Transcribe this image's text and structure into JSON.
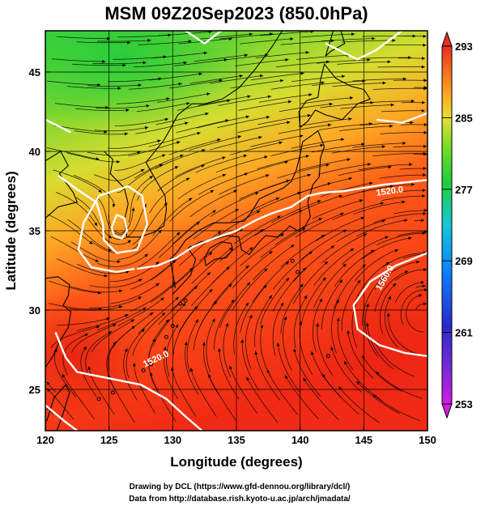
{
  "figure": {
    "title": "MSM 09Z20Sep2023 (850.0hPa)",
    "xlabel": "Longitude (degrees)",
    "ylabel": "Latitude  (degrees)",
    "credit_line1": "Drawing by DCL (https://www.gfd-dennou.org/library/dcl/)",
    "credit_line2": "Data from http://database.rish.kyoto-u.ac.jp/arch/jmadata/"
  },
  "map": {
    "lon_range": [
      120,
      150
    ],
    "lat_range": [
      22.4,
      47.6
    ],
    "x_ticks": [
      "120",
      "125",
      "130",
      "135",
      "140",
      "145",
      "150"
    ],
    "y_ticks": [
      "25",
      "30",
      "35",
      "40",
      "45"
    ],
    "contour_labels": [
      "1520.0",
      "1560.0",
      "1520.0"
    ],
    "colors": {
      "cold": "#3aa0ff",
      "mid": "#39d23a",
      "warm": "#ff3a10",
      "contour": "#ffffff",
      "streamline": "#000000"
    }
  },
  "colorbar": {
    "ticks": [
      "293",
      "285",
      "277",
      "269",
      "261",
      "253"
    ],
    "stops": [
      "#d01de0",
      "#3a3ad0",
      "#0064ff",
      "#00c8e6",
      "#1ecf3a",
      "#8ee02a",
      "#f0e030",
      "#ff9a20",
      "#ff4a14",
      "#e63020"
    ]
  }
}
